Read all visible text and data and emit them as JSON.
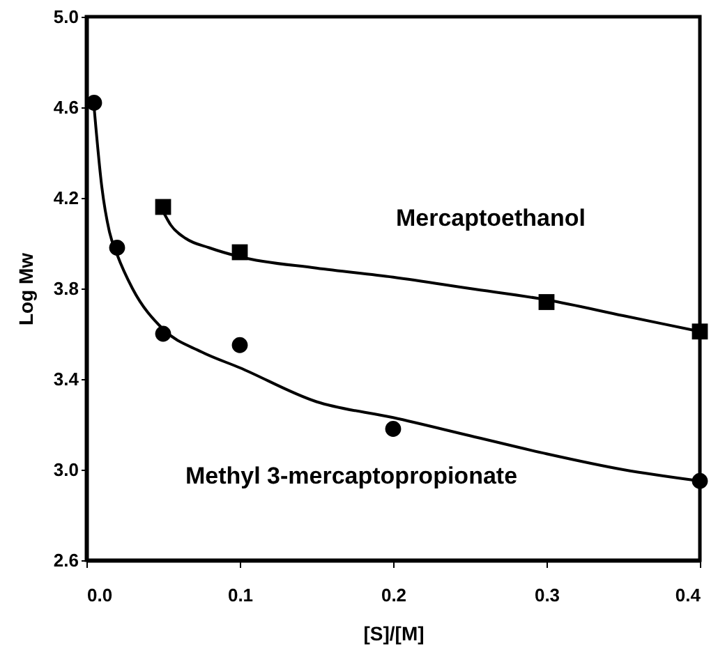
{
  "chart_data": {
    "type": "scatter",
    "xlabel": "[S]/[M]",
    "ylabel": "Log Mw",
    "xlim": [
      0,
      0.4
    ],
    "ylim": [
      2.6,
      5.0
    ],
    "xticks": [
      {
        "value": 0,
        "label": "0.0"
      },
      0.1,
      0.2,
      0.3,
      0.4
    ],
    "yticks": [
      2.6,
      {
        "value": 3,
        "label": "3.0"
      },
      3.4,
      3.8,
      4.2,
      4.6,
      {
        "value": 5,
        "label": "5.0"
      }
    ],
    "grid": false,
    "series": [
      {
        "name": "Mercaptoethanol",
        "marker": "square",
        "color": "#000000",
        "x": [
          0.05,
          0.1,
          0.3,
          0.4
        ],
        "values": [
          4.16,
          3.96,
          3.74,
          3.61
        ]
      },
      {
        "name": "Methyl 3-mercaptopropionate",
        "marker": "circle",
        "color": "#000000",
        "x": [
          0.005,
          0.02,
          0.05,
          0.1,
          0.2,
          0.4
        ],
        "values": [
          4.62,
          3.98,
          3.6,
          3.55,
          3.18,
          2.95
        ]
      },
      {
        "type": "line",
        "color": "#000000",
        "line_style": "solid",
        "x": [
          0.05,
          0.055,
          0.065,
          0.08,
          0.1,
          0.15,
          0.2,
          0.25,
          0.3,
          0.35,
          0.4
        ],
        "values": [
          4.14,
          4.08,
          4.02,
          3.98,
          3.94,
          3.89,
          3.85,
          3.8,
          3.75,
          3.68,
          3.61
        ]
      },
      {
        "type": "line",
        "color": "#000000",
        "line_style": "solid",
        "x": [
          0.005,
          0.01,
          0.015,
          0.02,
          0.03,
          0.05,
          0.075,
          0.1,
          0.15,
          0.2,
          0.25,
          0.3,
          0.35,
          0.4
        ],
        "values": [
          4.6,
          4.25,
          4.05,
          3.95,
          3.8,
          3.62,
          3.52,
          3.45,
          3.3,
          3.23,
          3.15,
          3.07,
          3.0,
          2.95
        ]
      }
    ]
  }
}
